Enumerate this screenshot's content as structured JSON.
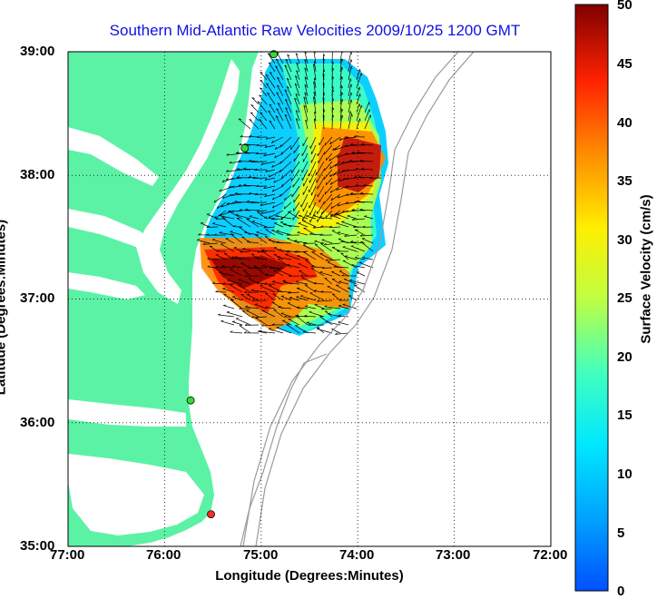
{
  "title": "Southern Mid-Atlantic Raw Velocities 2009/10/25 1200 GMT",
  "x_axis": {
    "label": "Longitude (Degrees:Minutes)",
    "ticks": [
      "77:00",
      "76:00",
      "75:00",
      "74:00",
      "73:00",
      "72:00"
    ]
  },
  "y_axis": {
    "label": "Latitude (Degrees:Minutes)",
    "ticks": [
      "39:00",
      "38:00",
      "37:00",
      "36:00",
      "35:00"
    ]
  },
  "colorbar": {
    "label": "Surface Velocity (cm/s)",
    "ticks": [
      "0",
      "5",
      "10",
      "15",
      "20",
      "25",
      "30",
      "35",
      "40",
      "45",
      "50"
    ],
    "range": [
      0,
      50
    ],
    "colormap": "jet"
  },
  "colors": {
    "land": "#5cf2a6",
    "water": "#ffffff",
    "title": "#1010e6",
    "bathymetry": "#9a9a9a",
    "grid": "#000000"
  },
  "map_extent": {
    "lon": [
      -77,
      -72
    ],
    "lat": [
      35,
      39
    ]
  },
  "grid": true,
  "stations": [
    {
      "color": "#33dd33",
      "lon": -74.87,
      "lat": 38.98
    },
    {
      "color": "#33dd33",
      "lon": -75.17,
      "lat": 38.22
    },
    {
      "color": "#33dd33",
      "lon": -75.73,
      "lat": 36.18
    },
    {
      "color": "#ff2a2a",
      "lon": -75.52,
      "lat": 35.26
    }
  ]
}
